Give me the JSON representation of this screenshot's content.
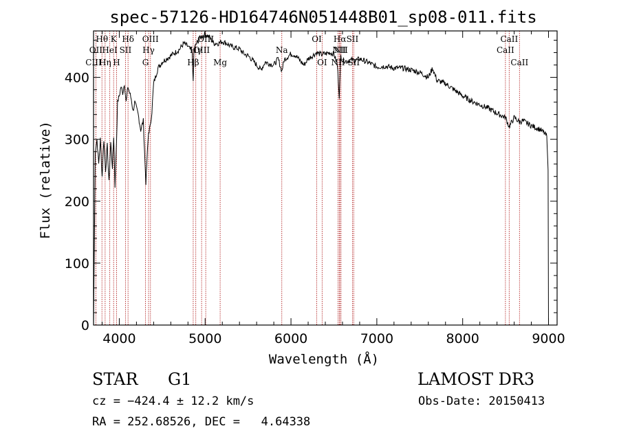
{
  "chart_data": {
    "type": "line",
    "title": "spec-57126-HD164746N051448B01_sp08-011.fits",
    "xlabel": "Wavelength (Å)",
    "ylabel": "Flux (relative)",
    "xlim": [
      3700,
      9100
    ],
    "ylim": [
      0,
      475
    ],
    "xticks": [
      4000,
      5000,
      6000,
      7000,
      8000,
      9000
    ],
    "yticks": [
      0,
      100,
      200,
      300,
      400
    ],
    "series": [
      {
        "name": "spectrum",
        "x": [
          3700,
          3720,
          3740,
          3760,
          3780,
          3800,
          3820,
          3840,
          3860,
          3880,
          3900,
          3920,
          3935,
          3950,
          3968,
          3980,
          4000,
          4020,
          4040,
          4060,
          4080,
          4100,
          4120,
          4140,
          4160,
          4180,
          4200,
          4220,
          4250,
          4280,
          4300,
          4310,
          4320,
          4340,
          4360,
          4380,
          4400,
          4420,
          4450,
          4500,
          4550,
          4600,
          4650,
          4700,
          4750,
          4800,
          4850,
          4861,
          4870,
          4900,
          4950,
          5000,
          5050,
          5100,
          5150,
          5200,
          5250,
          5300,
          5350,
          5400,
          5450,
          5500,
          5550,
          5600,
          5650,
          5700,
          5750,
          5800,
          5850,
          5893,
          5920,
          5950,
          6000,
          6050,
          6100,
          6150,
          6200,
          6250,
          6300,
          6350,
          6400,
          6450,
          6500,
          6540,
          6563,
          6580,
          6600,
          6650,
          6700,
          6750,
          6800,
          6900,
          7000,
          7100,
          7200,
          7300,
          7400,
          7500,
          7600,
          7650,
          7700,
          7800,
          7900,
          8000,
          8100,
          8200,
          8300,
          8400,
          8500,
          8542,
          8600,
          8662,
          8700,
          8800,
          8900,
          8950,
          8980,
          8995,
          9000
        ],
        "y": [
          0,
          280,
          300,
          260,
          300,
          240,
          300,
          250,
          290,
          230,
          295,
          255,
          305,
          225,
          300,
          360,
          370,
          385,
          375,
          390,
          360,
          385,
          375,
          365,
          345,
          360,
          350,
          340,
          315,
          330,
          260,
          230,
          260,
          310,
          320,
          345,
          390,
          400,
          415,
          425,
          430,
          435,
          440,
          445,
          455,
          450,
          440,
          390,
          445,
          455,
          465,
          470,
          465,
          455,
          455,
          458,
          455,
          450,
          448,
          446,
          438,
          435,
          428,
          420,
          412,
          425,
          422,
          420,
          430,
          410,
          428,
          432,
          438,
          436,
          428,
          420,
          430,
          435,
          440,
          437,
          438,
          440,
          438,
          420,
          370,
          435,
          428,
          426,
          428,
          427,
          430,
          424,
          417,
          418,
          415,
          415,
          412,
          408,
          400,
          415,
          395,
          390,
          380,
          370,
          362,
          356,
          350,
          342,
          335,
          320,
          335,
          328,
          330,
          322,
          316,
          310,
          305,
          250,
          0
        ]
      }
    ],
    "lines": [
      {
        "label": "CIII",
        "wavelength": 3700,
        "row": "bottom"
      },
      {
        "label": "OII",
        "wavelength": 3727,
        "row": "middle"
      },
      {
        "label": "Hθ",
        "wavelength": 3798,
        "row": "top"
      },
      {
        "label": "Hη",
        "wavelength": 3835,
        "row": "bottom"
      },
      {
        "label": "HeI",
        "wavelength": 3889,
        "row": "middle"
      },
      {
        "label": "K",
        "wavelength": 3934,
        "row": "top"
      },
      {
        "label": "H",
        "wavelength": 3968,
        "row": "bottom"
      },
      {
        "label": "SII",
        "wavelength": 4072,
        "row": "middle"
      },
      {
        "label": "Hδ",
        "wavelength": 4102,
        "row": "top"
      },
      {
        "label": "G",
        "wavelength": 4305,
        "row": "bottom"
      },
      {
        "label": "Hγ",
        "wavelength": 4341,
        "row": "middle"
      },
      {
        "label": "OIII",
        "wavelength": 4363,
        "row": "top"
      },
      {
        "label": "Hβ",
        "wavelength": 4861,
        "row": "bottom"
      },
      {
        "label": "Hγ",
        "wavelength": 4891,
        "row": "middle"
      },
      {
        "label": "OIII",
        "wavelength": 4959,
        "row": "middle"
      },
      {
        "label": "OIII",
        "wavelength": 5007,
        "row": "top"
      },
      {
        "label": "Mg",
        "wavelength": 5175,
        "row": "bottom"
      },
      {
        "label": "Na",
        "wavelength": 5893,
        "row": "middle"
      },
      {
        "label": "OI",
        "wavelength": 6300,
        "row": "top"
      },
      {
        "label": "OI",
        "wavelength": 6363,
        "row": "bottom"
      },
      {
        "label": "NII",
        "wavelength": 6548,
        "row": "bottom"
      },
      {
        "label": "NII",
        "wavelength": 6563,
        "row": "middle"
      },
      {
        "label": "Hα",
        "wavelength": 6570,
        "row": "top"
      },
      {
        "label": "NII",
        "wavelength": 6583,
        "row": "middle"
      },
      {
        "label": "SII",
        "wavelength": 6716,
        "row": "top"
      },
      {
        "label": "SII",
        "wavelength": 6731,
        "row": "bottom"
      },
      {
        "label": "CaII",
        "wavelength": 8498,
        "row": "middle"
      },
      {
        "label": "CaII",
        "wavelength": 8542,
        "row": "top"
      },
      {
        "label": "CaII",
        "wavelength": 8662,
        "row": "bottom"
      }
    ]
  },
  "info": {
    "object_class": "STAR",
    "subclass": "G1",
    "survey": "LAMOST DR3",
    "cz": "cz = −424.4 ± 12.2 km/s",
    "obs_date": "Obs-Date: 20150413",
    "coords": "RA = 252.68526, DEC =   4.64338"
  },
  "colors": {
    "spectrum": "#000000",
    "line_marker": "#b22222",
    "axes": "#000000"
  }
}
